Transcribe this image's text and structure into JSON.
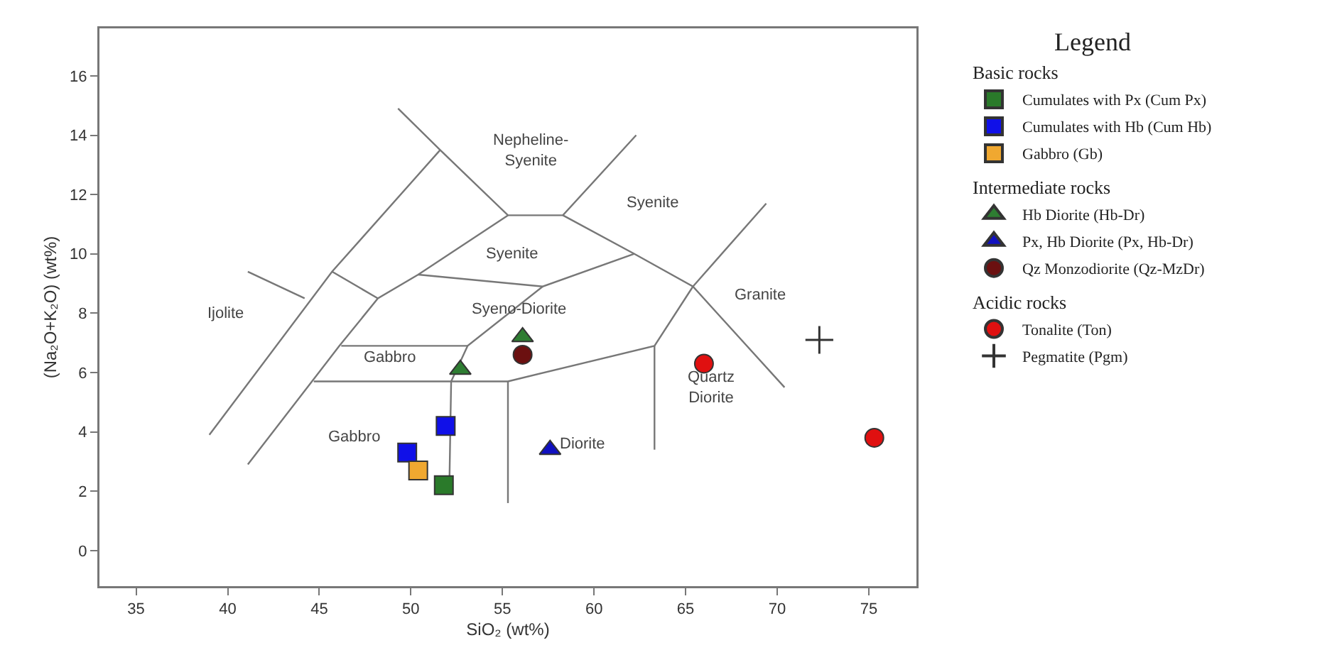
{
  "chart_data": {
    "type": "scatter",
    "xlabel": "SiO₂ (wt%)",
    "ylabel": "(Na₂O+K₂O) (wt%)",
    "legend_title": "Legend",
    "legend": "right",
    "grid": false,
    "xlim": [
      33,
      77.6
    ],
    "xticks": [
      35,
      40,
      45,
      50,
      55,
      60,
      65,
      70,
      75
    ],
    "ylim": [
      -1.2,
      17.6
    ],
    "yticks": [
      0,
      2,
      4,
      6,
      8,
      10,
      12,
      14,
      16
    ],
    "series": [
      {
        "type": "line",
        "color": "#777777",
        "marker": "none",
        "line_style": "solid",
        "x": [
          39.0,
          45.7,
          51.6,
          null,
          41.1,
          44.2,
          null,
          41.1,
          46.1,
          48.2,
          50.4,
          55.3,
          null,
          45.7,
          48.2,
          null,
          49.3,
          51.6,
          55.3,
          58.3,
          62.3,
          null,
          58.3,
          62.2,
          65.4,
          70.4,
          null,
          50.4,
          57.2,
          62.2,
          null,
          57.2,
          53.1,
          52.2,
          52.1,
          null,
          46.2,
          53.1,
          null,
          44.7,
          55.3,
          63.3,
          65.4,
          null,
          55.3,
          55.3,
          null,
          63.3,
          63.3,
          null,
          65.4,
          69.4
        ],
        "values": [
          3.9,
          9.4,
          13.5,
          null,
          9.4,
          8.5,
          null,
          2.9,
          6.9,
          8.5,
          9.3,
          11.3,
          null,
          9.4,
          8.5,
          null,
          14.9,
          13.5,
          11.3,
          11.3,
          14.0,
          null,
          11.3,
          10.0,
          8.9,
          5.5,
          null,
          9.3,
          8.9,
          10.0,
          null,
          8.9,
          6.9,
          5.7,
          2.1,
          null,
          6.9,
          6.9,
          null,
          5.7,
          5.7,
          6.9,
          8.9,
          null,
          5.7,
          1.6,
          null,
          6.9,
          3.4,
          null,
          8.9,
          11.7
        ]
      },
      {
        "name": "Cumulates with Px (Cum Px)",
        "color": "#2a7a2a",
        "marker": "square",
        "x": [
          51.8
        ],
        "values": [
          2.2
        ]
      },
      {
        "name": "Cumulates with Hb (Cum Hb)",
        "color": "#1010e8",
        "marker": "square",
        "x": [
          49.8,
          51.9
        ],
        "values": [
          3.3,
          4.2
        ]
      },
      {
        "name": "Gabbro (Gb)",
        "color": "#f0a830",
        "marker": "square",
        "x": [
          50.4
        ],
        "values": [
          2.7
        ]
      },
      {
        "name": "Hb Diorite (Hb-Dr)",
        "color": "#2e7d32",
        "marker": "triangle",
        "x": [
          52.7,
          56.1
        ],
        "values": [
          6.1,
          7.2
        ]
      },
      {
        "name": "Px, Hb Diorite (Px, Hb-Dr)",
        "color": "#1010c0",
        "marker": "triangle",
        "x": [
          57.6
        ],
        "values": [
          3.4
        ]
      },
      {
        "name": "Qz Monzodiorite (Qz-MzDr)",
        "color": "#6b1010",
        "marker": "circle",
        "x": [
          56.1
        ],
        "values": [
          6.6
        ]
      },
      {
        "name": "Tonalite (Ton)",
        "color": "#e01010",
        "marker": "circle",
        "x": [
          66.0,
          75.3
        ],
        "values": [
          6.3,
          3.8
        ]
      },
      {
        "name": "Pegmatite (Pgm)",
        "color": "#333333",
        "marker": "cross",
        "x": [
          72.3
        ],
        "values": [
          7.1
        ]
      }
    ],
    "annotations": [
      "Nepheline-\nSyenite",
      "Syenite",
      "Syenite",
      "Granite",
      "Syeno-Diorite",
      "Gabbro",
      "Ijolite",
      "Quartz\nDiorite",
      "Diorite",
      "Gabbro",
      "Basic rocks",
      "Intermediate rocks",
      "Acidic rocks"
    ]
  }
}
